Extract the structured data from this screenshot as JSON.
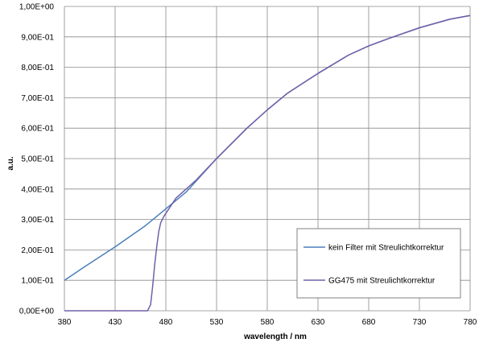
{
  "chart_data": {
    "type": "line",
    "xlabel": "wavelength / nm",
    "ylabel": "a.u.",
    "xlim": [
      380,
      780
    ],
    "ylim": [
      0,
      1
    ],
    "x_ticks": [
      "380",
      "430",
      "480",
      "530",
      "580",
      "630",
      "680",
      "730",
      "780"
    ],
    "y_ticks": [
      "0,00E+00",
      "1,00E-01",
      "2,00E-01",
      "3,00E-01",
      "4,00E-01",
      "5,00E-01",
      "6,00E-01",
      "7,00E-01",
      "8,00E-01",
      "9,00E-01",
      "1,00E+00"
    ],
    "grid": true,
    "legend_position": "bottom-right",
    "series": [
      {
        "name": "kein Filter mit Streulichtkorrektur",
        "color": "#4a7ebb",
        "points": [
          [
            380,
            0.1
          ],
          [
            400,
            0.145
          ],
          [
            430,
            0.21
          ],
          [
            460,
            0.28
          ],
          [
            480,
            0.335
          ],
          [
            500,
            0.39
          ],
          [
            530,
            0.5
          ],
          [
            560,
            0.6
          ],
          [
            580,
            0.66
          ],
          [
            600,
            0.715
          ],
          [
            630,
            0.78
          ],
          [
            660,
            0.84
          ],
          [
            680,
            0.87
          ],
          [
            700,
            0.895
          ],
          [
            730,
            0.93
          ],
          [
            760,
            0.958
          ],
          [
            780,
            0.97
          ]
        ]
      },
      {
        "name": "GG475 mit Streulichtkorrektur",
        "color": "#7060a8",
        "points": [
          [
            380,
            0.0
          ],
          [
            440,
            0.0
          ],
          [
            462,
            0.0
          ],
          [
            465,
            0.02
          ],
          [
            467,
            0.08
          ],
          [
            469,
            0.15
          ],
          [
            471,
            0.21
          ],
          [
            473,
            0.26
          ],
          [
            475,
            0.29
          ],
          [
            478,
            0.31
          ],
          [
            482,
            0.33
          ],
          [
            490,
            0.37
          ],
          [
            500,
            0.4
          ],
          [
            510,
            0.43
          ],
          [
            530,
            0.5
          ],
          [
            560,
            0.6
          ],
          [
            580,
            0.66
          ],
          [
            600,
            0.715
          ],
          [
            630,
            0.78
          ],
          [
            660,
            0.84
          ],
          [
            680,
            0.87
          ],
          [
            700,
            0.895
          ],
          [
            730,
            0.93
          ],
          [
            760,
            0.958
          ],
          [
            780,
            0.97
          ]
        ]
      }
    ]
  }
}
